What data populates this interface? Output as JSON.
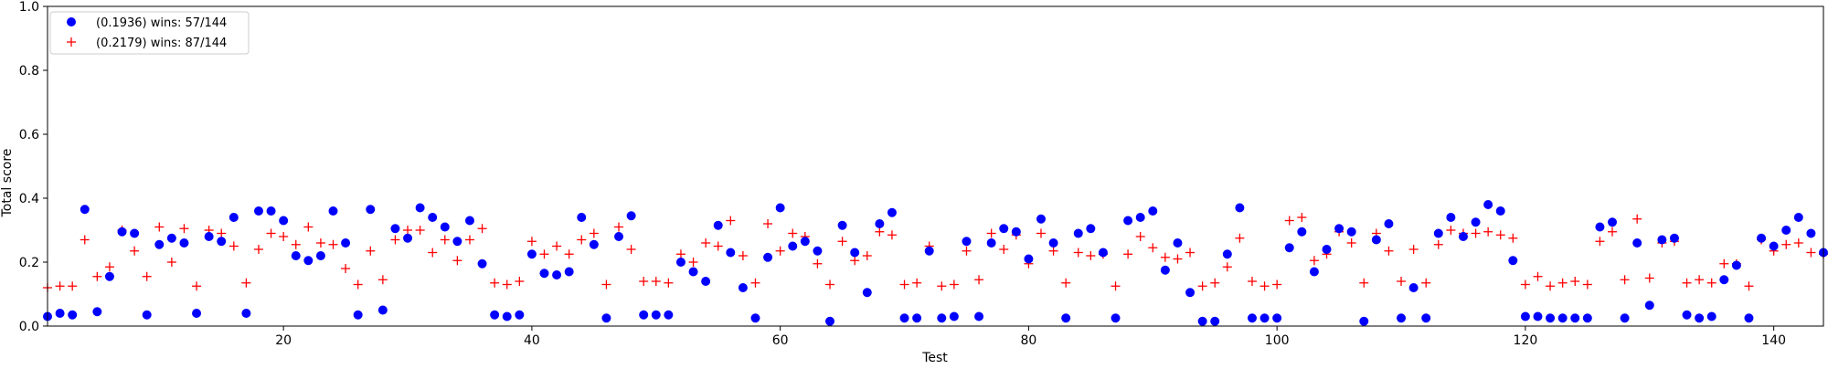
{
  "chart_data": {
    "type": "scatter",
    "title": "",
    "xlabel": "Test",
    "ylabel": "Total score",
    "xlim": [
      1,
      144
    ],
    "ylim": [
      0,
      1.0
    ],
    "xticks": [
      20,
      40,
      60,
      80,
      100,
      120,
      140
    ],
    "xtick_labels": [
      "20",
      "40",
      "60",
      "80",
      "100",
      "120",
      "140"
    ],
    "yticks": [
      0.0,
      0.2,
      0.4,
      0.6,
      0.8,
      1.0
    ],
    "ytick_labels": [
      "0.0",
      "0.2",
      "0.4",
      "0.6",
      "0.8",
      "1.0"
    ],
    "grid": false,
    "legend_position": "top-left",
    "series": [
      {
        "name": "(0.1936) wins: 57/144",
        "marker": "circle",
        "color": "#0000ff",
        "x": [
          1,
          2,
          3,
          4,
          5,
          6,
          7,
          8,
          9,
          10,
          11,
          12,
          13,
          14,
          15,
          16,
          17,
          18,
          19,
          20,
          21,
          22,
          23,
          24,
          25,
          26,
          27,
          28,
          29,
          30,
          31,
          32,
          33,
          34,
          35,
          36,
          37,
          38,
          39,
          40,
          41,
          42,
          43,
          44,
          45,
          46,
          47,
          48,
          49,
          50,
          51,
          52,
          53,
          54,
          55,
          56,
          57,
          58,
          59,
          60,
          61,
          62,
          63,
          64,
          65,
          66,
          67,
          68,
          69,
          70,
          71,
          72,
          73,
          74,
          75,
          76,
          77,
          78,
          79,
          80,
          81,
          82,
          83,
          84,
          85,
          86,
          87,
          88,
          89,
          90,
          91,
          92,
          93,
          94,
          95,
          96,
          97,
          98,
          99,
          100,
          101,
          102,
          103,
          104,
          105,
          106,
          107,
          108,
          109,
          110,
          111,
          112,
          113,
          114,
          115,
          116,
          117,
          118,
          119,
          120,
          121,
          122,
          123,
          124,
          125,
          126,
          127,
          128,
          129,
          130,
          131,
          132,
          133,
          134,
          135,
          136,
          137,
          138,
          139,
          140,
          141,
          142,
          143,
          144
        ],
        "values": [
          0.03,
          0.04,
          0.035,
          0.365,
          0.045,
          0.155,
          0.295,
          0.29,
          0.035,
          0.255,
          0.275,
          0.26,
          0.04,
          0.28,
          0.265,
          0.34,
          0.04,
          0.36,
          0.36,
          0.33,
          0.22,
          0.205,
          0.22,
          0.36,
          0.26,
          0.035,
          0.365,
          0.05,
          0.305,
          0.275,
          0.37,
          0.34,
          0.31,
          0.265,
          0.33,
          0.195,
          0.035,
          0.03,
          0.035,
          0.225,
          0.165,
          0.16,
          0.17,
          0.34,
          0.255,
          0.025,
          0.28,
          0.345,
          0.035,
          0.035,
          0.035,
          0.2,
          0.17,
          0.14,
          0.315,
          0.23,
          0.12,
          0.025,
          0.215,
          0.37,
          0.25,
          0.265,
          0.235,
          0.015,
          0.315,
          0.23,
          0.105,
          0.32,
          0.355,
          0.025,
          0.025,
          0.235,
          0.025,
          0.03,
          0.265,
          0.03,
          0.26,
          0.305,
          0.295,
          0.21,
          0.335,
          0.26,
          0.025,
          0.29,
          0.305,
          0.23,
          0.025,
          0.33,
          0.34,
          0.36,
          0.175,
          0.26,
          0.105,
          0.015,
          0.015,
          0.225,
          0.37,
          0.025,
          0.025,
          0.025,
          0.245,
          0.295,
          0.17,
          0.24,
          0.305,
          0.295,
          0.015,
          0.27,
          0.32,
          0.025,
          0.12,
          0.025,
          0.29,
          0.34,
          0.28,
          0.325,
          0.38,
          0.36,
          0.205,
          0.03,
          0.03,
          0.025,
          0.025,
          0.025,
          0.025,
          0.31,
          0.325,
          0.025,
          0.26,
          0.065,
          0.27,
          0.275,
          0.035,
          0.025,
          0.03,
          0.145,
          0.19,
          0.025,
          0.275,
          0.25,
          0.3,
          0.34,
          0.29,
          0.23
        ]
      },
      {
        "name": "(0.2179) wins: 87/144",
        "marker": "plus",
        "color": "#ff0000",
        "x": [
          1,
          2,
          3,
          4,
          5,
          6,
          7,
          8,
          9,
          10,
          11,
          12,
          13,
          14,
          15,
          16,
          17,
          18,
          19,
          20,
          21,
          22,
          23,
          24,
          25,
          26,
          27,
          28,
          29,
          30,
          31,
          32,
          33,
          34,
          35,
          36,
          37,
          38,
          39,
          40,
          41,
          42,
          43,
          44,
          45,
          46,
          47,
          48,
          49,
          50,
          51,
          52,
          53,
          54,
          55,
          56,
          57,
          58,
          59,
          60,
          61,
          62,
          63,
          64,
          65,
          66,
          67,
          68,
          69,
          70,
          71,
          72,
          73,
          74,
          75,
          76,
          77,
          78,
          79,
          80,
          81,
          82,
          83,
          84,
          85,
          86,
          87,
          88,
          89,
          90,
          91,
          92,
          93,
          94,
          95,
          96,
          97,
          98,
          99,
          100,
          101,
          102,
          103,
          104,
          105,
          106,
          107,
          108,
          109,
          110,
          111,
          112,
          113,
          114,
          115,
          116,
          117,
          118,
          119,
          120,
          121,
          122,
          123,
          124,
          125,
          126,
          127,
          128,
          129,
          130,
          131,
          132,
          133,
          134,
          135,
          136,
          137,
          138,
          139,
          140,
          141,
          142,
          143,
          144
        ],
        "values": [
          0.12,
          0.125,
          0.125,
          0.27,
          0.155,
          0.185,
          0.3,
          0.235,
          0.155,
          0.31,
          0.2,
          0.305,
          0.125,
          0.3,
          0.29,
          0.25,
          0.135,
          0.24,
          0.29,
          0.28,
          0.255,
          0.31,
          0.26,
          0.255,
          0.18,
          0.13,
          0.235,
          0.145,
          0.27,
          0.3,
          0.3,
          0.23,
          0.27,
          0.205,
          0.27,
          0.305,
          0.135,
          0.13,
          0.14,
          0.265,
          0.225,
          0.25,
          0.225,
          0.27,
          0.29,
          0.13,
          0.31,
          0.24,
          0.14,
          0.14,
          0.135,
          0.225,
          0.2,
          0.26,
          0.25,
          0.33,
          0.22,
          0.135,
          0.32,
          0.235,
          0.29,
          0.28,
          0.195,
          0.13,
          0.265,
          0.205,
          0.22,
          0.295,
          0.285,
          0.13,
          0.135,
          0.25,
          0.125,
          0.13,
          0.235,
          0.145,
          0.29,
          0.24,
          0.285,
          0.195,
          0.29,
          0.235,
          0.135,
          0.23,
          0.22,
          0.225,
          0.125,
          0.225,
          0.28,
          0.245,
          0.215,
          0.21,
          0.23,
          0.125,
          0.135,
          0.185,
          0.275,
          0.14,
          0.125,
          0.13,
          0.33,
          0.34,
          0.205,
          0.225,
          0.295,
          0.26,
          0.135,
          0.29,
          0.235,
          0.14,
          0.24,
          0.135,
          0.255,
          0.3,
          0.29,
          0.29,
          0.295,
          0.285,
          0.275,
          0.13,
          0.155,
          0.125,
          0.135,
          0.14,
          0.13,
          0.265,
          0.295,
          0.145,
          0.335,
          0.15,
          0.26,
          0.265,
          0.135,
          0.145,
          0.135,
          0.195,
          0.195,
          0.125,
          0.27,
          0.235,
          0.255,
          0.26,
          0.23,
          0.225
        ]
      }
    ]
  }
}
